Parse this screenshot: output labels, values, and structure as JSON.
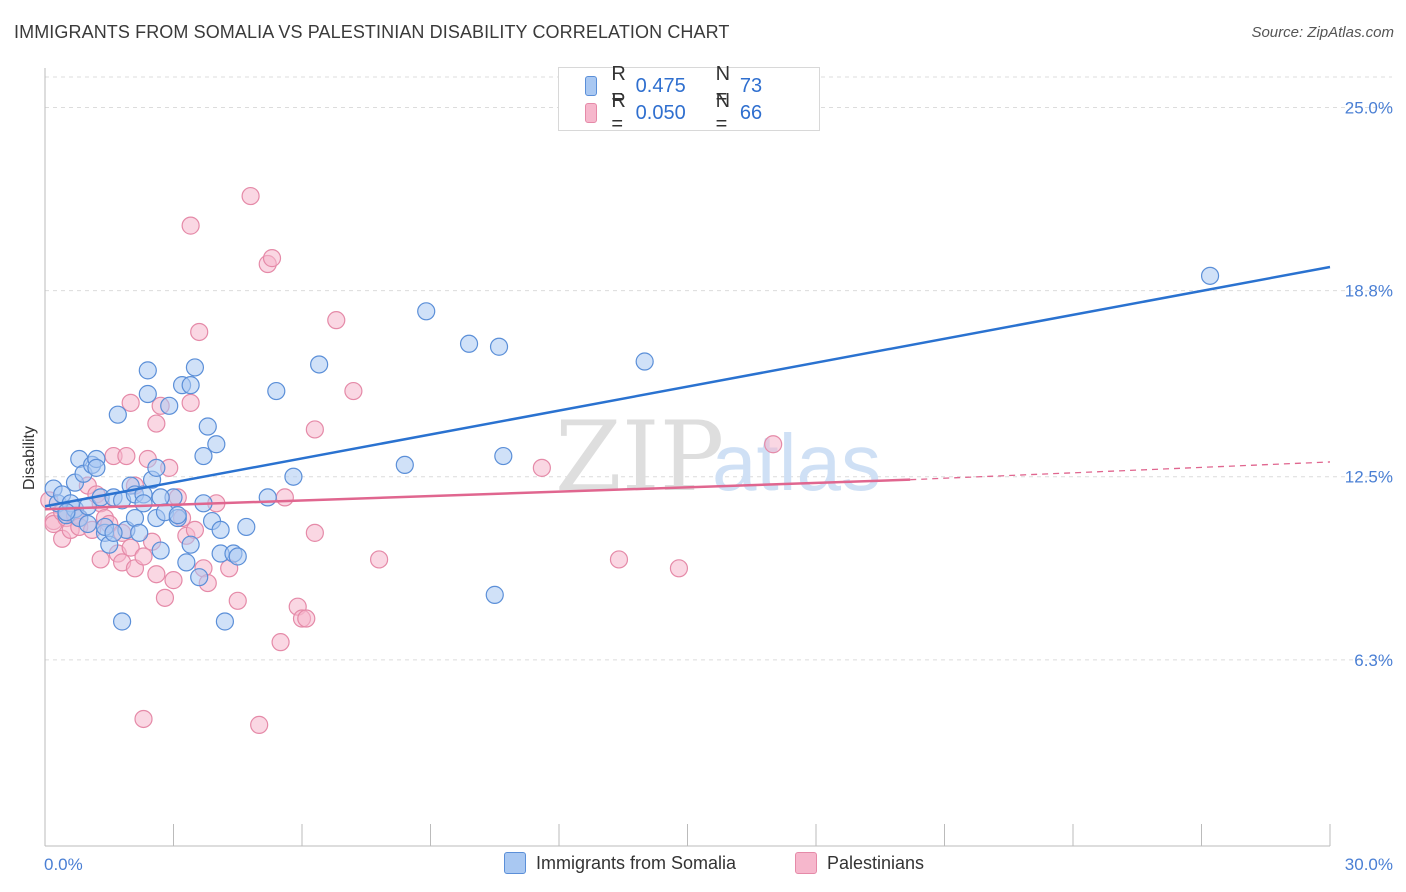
{
  "title": "IMMIGRANTS FROM SOMALIA VS PALESTINIAN DISABILITY CORRELATION CHART",
  "source": "Source: ZipAtlas.com",
  "watermark": {
    "zip": "ZIP",
    "atlas": "atlas"
  },
  "legend": {
    "rows": [
      {
        "r_label": "R =",
        "r_value": "0.475",
        "n_label": "N =",
        "n_value": "73"
      },
      {
        "r_label": "R =",
        "r_value": "0.050",
        "n_label": "N =",
        "n_value": "66"
      }
    ]
  },
  "bottom_legend": {
    "series_a": "Immigrants from Somalia",
    "series_b": "Palestinians"
  },
  "colors": {
    "somalia_fill": "#a9c8f2",
    "somalia_stroke": "#5b8fd8",
    "somalia_line": "#2a72d0",
    "palest_fill": "#f6b7cc",
    "palest_stroke": "#e58aa8",
    "palest_line": "#e0668f",
    "axis_text": "#4a7fd4",
    "grid": "#dcdcdc"
  },
  "chart_data": {
    "type": "scatter",
    "title": "IMMIGRANTS FROM SOMALIA VS PALESTINIAN DISABILITY CORRELATION CHART",
    "xlabel": "",
    "ylabel": "Disability",
    "xlim": [
      0,
      30
    ],
    "ylim": [
      0,
      26.2
    ],
    "x_tick_labels": [
      "0.0%",
      "30.0%"
    ],
    "y_ticks": [
      6.3,
      12.5,
      18.8,
      25.0
    ],
    "y_tick_labels": [
      "6.3%",
      "12.5%",
      "18.8%",
      "25.0%"
    ],
    "grid": "horizontal dashed",
    "series": [
      {
        "name": "Immigrants from Somalia",
        "r": 0.475,
        "n": 73,
        "trend": {
          "x": [
            0,
            30
          ],
          "y": [
            11.5,
            19.6
          ]
        },
        "points": [
          [
            0.2,
            12.1
          ],
          [
            0.3,
            11.6
          ],
          [
            0.4,
            11.9
          ],
          [
            0.5,
            11.2
          ],
          [
            0.6,
            11.6
          ],
          [
            0.7,
            12.3
          ],
          [
            0.7,
            11.4
          ],
          [
            0.8,
            11.1
          ],
          [
            0.8,
            13.1
          ],
          [
            0.9,
            12.6
          ],
          [
            1.0,
            11.5
          ],
          [
            1.1,
            12.9
          ],
          [
            1.2,
            13.1
          ],
          [
            1.2,
            12.8
          ],
          [
            1.3,
            11.8
          ],
          [
            1.4,
            10.6
          ],
          [
            1.4,
            10.8
          ],
          [
            1.5,
            10.2
          ],
          [
            1.6,
            11.8
          ],
          [
            1.7,
            14.6
          ],
          [
            1.8,
            11.7
          ],
          [
            1.9,
            10.7
          ],
          [
            2.0,
            12.2
          ],
          [
            2.1,
            11.9
          ],
          [
            2.1,
            11.1
          ],
          [
            2.2,
            10.6
          ],
          [
            2.3,
            11.9
          ],
          [
            2.3,
            11.6
          ],
          [
            2.4,
            15.3
          ],
          [
            2.4,
            16.1
          ],
          [
            2.5,
            12.4
          ],
          [
            2.6,
            11.1
          ],
          [
            2.6,
            12.8
          ],
          [
            2.7,
            10.0
          ],
          [
            2.8,
            11.3
          ],
          [
            2.9,
            14.9
          ],
          [
            3.0,
            11.8
          ],
          [
            3.1,
            11.1
          ],
          [
            3.1,
            11.2
          ],
          [
            3.2,
            15.6
          ],
          [
            3.3,
            9.6
          ],
          [
            3.4,
            15.6
          ],
          [
            3.4,
            10.2
          ],
          [
            3.5,
            16.2
          ],
          [
            3.6,
            9.1
          ],
          [
            3.7,
            13.2
          ],
          [
            3.7,
            11.6
          ],
          [
            3.8,
            14.2
          ],
          [
            3.9,
            11.0
          ],
          [
            4.0,
            13.6
          ],
          [
            4.1,
            10.7
          ],
          [
            4.1,
            9.9
          ],
          [
            4.2,
            7.6
          ],
          [
            4.4,
            9.9
          ],
          [
            4.5,
            9.8
          ],
          [
            4.7,
            10.8
          ],
          [
            5.2,
            11.8
          ],
          [
            5.4,
            15.4
          ],
          [
            5.8,
            12.5
          ],
          [
            6.4,
            16.3
          ],
          [
            8.4,
            12.9
          ],
          [
            8.9,
            18.1
          ],
          [
            9.9,
            17.0
          ],
          [
            10.5,
            8.5
          ],
          [
            10.6,
            16.9
          ],
          [
            10.7,
            13.2
          ],
          [
            14.0,
            16.4
          ],
          [
            27.2,
            19.3
          ],
          [
            0.5,
            11.3
          ],
          [
            1.0,
            10.9
          ],
          [
            1.6,
            10.6
          ],
          [
            2.7,
            11.8
          ],
          [
            1.8,
            7.6
          ]
        ]
      },
      {
        "name": "Palestinians",
        "r": 0.05,
        "n": 66,
        "trend": {
          "x": [
            0,
            20.2
          ],
          "y": [
            11.4,
            12.4
          ],
          "dashed_to": [
            30,
            13.0
          ]
        },
        "points": [
          [
            0.1,
            11.7
          ],
          [
            0.2,
            11.0
          ],
          [
            0.2,
            10.9
          ],
          [
            0.4,
            10.4
          ],
          [
            0.4,
            11.3
          ],
          [
            0.5,
            11.1
          ],
          [
            0.6,
            10.7
          ],
          [
            0.7,
            11.2
          ],
          [
            0.8,
            11.1
          ],
          [
            0.8,
            10.8
          ],
          [
            1.0,
            12.2
          ],
          [
            1.1,
            10.7
          ],
          [
            1.2,
            11.9
          ],
          [
            1.3,
            11.6
          ],
          [
            1.3,
            9.7
          ],
          [
            1.4,
            11.1
          ],
          [
            1.5,
            10.9
          ],
          [
            1.6,
            13.2
          ],
          [
            1.7,
            9.9
          ],
          [
            1.8,
            10.6
          ],
          [
            1.8,
            9.6
          ],
          [
            1.9,
            13.2
          ],
          [
            2.0,
            10.1
          ],
          [
            2.0,
            15.0
          ],
          [
            2.1,
            12.2
          ],
          [
            2.1,
            9.4
          ],
          [
            2.3,
            9.8
          ],
          [
            2.4,
            13.1
          ],
          [
            2.5,
            10.3
          ],
          [
            2.6,
            9.2
          ],
          [
            2.6,
            14.3
          ],
          [
            2.7,
            14.9
          ],
          [
            2.8,
            8.4
          ],
          [
            2.9,
            12.8
          ],
          [
            3.0,
            9.0
          ],
          [
            3.1,
            11.8
          ],
          [
            3.2,
            11.1
          ],
          [
            3.3,
            10.5
          ],
          [
            3.4,
            21.0
          ],
          [
            3.4,
            15.0
          ],
          [
            3.5,
            10.7
          ],
          [
            3.6,
            17.4
          ],
          [
            3.7,
            9.4
          ],
          [
            3.8,
            8.9
          ],
          [
            4.0,
            11.6
          ],
          [
            4.3,
            9.4
          ],
          [
            4.5,
            8.3
          ],
          [
            4.8,
            22.0
          ],
          [
            5.2,
            19.7
          ],
          [
            5.3,
            19.9
          ],
          [
            5.6,
            11.8
          ],
          [
            5.5,
            6.9
          ],
          [
            5.9,
            8.1
          ],
          [
            6.0,
            7.7
          ],
          [
            6.1,
            7.7
          ],
          [
            6.3,
            10.6
          ],
          [
            6.3,
            14.1
          ],
          [
            6.8,
            17.8
          ],
          [
            7.2,
            15.4
          ],
          [
            7.8,
            9.7
          ],
          [
            2.3,
            4.3
          ],
          [
            5.0,
            4.1
          ],
          [
            11.6,
            12.8
          ],
          [
            13.4,
            9.7
          ],
          [
            14.8,
            9.4
          ],
          [
            17.0,
            13.6
          ]
        ]
      }
    ]
  }
}
